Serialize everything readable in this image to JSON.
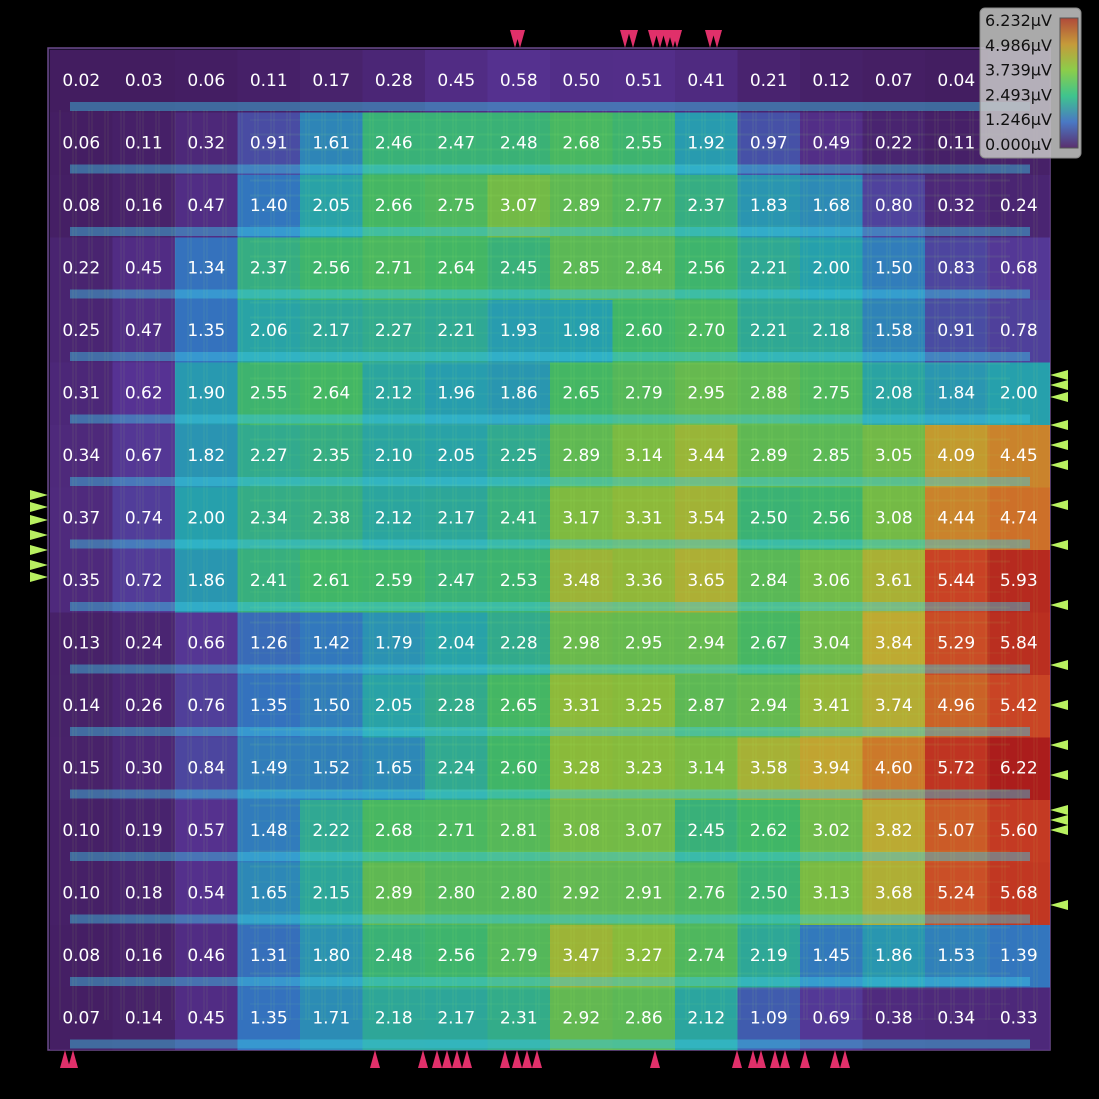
{
  "chart_data": {
    "type": "heatmap",
    "title": "",
    "unit": "μV",
    "rows": 16,
    "cols": 16,
    "vmin": 0.0,
    "vmax": 6.232,
    "colorbar_ticks": [
      "6.232μV",
      "4.986μV",
      "3.739μV",
      "2.493μV",
      "1.246μV",
      "0.000μV"
    ],
    "colorbar_colors": [
      "#b04a3a",
      "#c59a3a",
      "#8ccd4a",
      "#3fc48e",
      "#4a78c4",
      "#5a2f6e"
    ],
    "legend_position": "top-right",
    "values": [
      [
        "0.02",
        "0.03",
        "0.06",
        "0.11",
        "0.17",
        "0.28",
        "0.45",
        "0.58",
        "0.50",
        "0.51",
        "0.41",
        "0.21",
        "0.12",
        "0.07",
        "0.04",
        ""
      ],
      [
        "0.06",
        "0.11",
        "0.32",
        "0.91",
        "1.61",
        "2.46",
        "2.47",
        "2.48",
        "2.68",
        "2.55",
        "1.92",
        "0.97",
        "0.49",
        "0.22",
        "0.11",
        ""
      ],
      [
        "0.08",
        "0.16",
        "0.47",
        "1.40",
        "2.05",
        "2.66",
        "2.75",
        "3.07",
        "2.89",
        "2.77",
        "2.37",
        "1.83",
        "1.68",
        "0.80",
        "0.32",
        "0.24"
      ],
      [
        "0.22",
        "0.45",
        "1.34",
        "2.37",
        "2.56",
        "2.71",
        "2.64",
        "2.45",
        "2.85",
        "2.84",
        "2.56",
        "2.21",
        "2.00",
        "1.50",
        "0.83",
        "0.68"
      ],
      [
        "0.25",
        "0.47",
        "1.35",
        "2.06",
        "2.17",
        "2.27",
        "2.21",
        "1.93",
        "1.98",
        "2.60",
        "2.70",
        "2.21",
        "2.18",
        "1.58",
        "0.91",
        "0.78"
      ],
      [
        "0.31",
        "0.62",
        "1.90",
        "2.55",
        "2.64",
        "2.12",
        "1.96",
        "1.86",
        "2.65",
        "2.79",
        "2.95",
        "2.88",
        "2.75",
        "2.08",
        "1.84",
        "2.00"
      ],
      [
        "0.34",
        "0.67",
        "1.82",
        "2.27",
        "2.35",
        "2.10",
        "2.05",
        "2.25",
        "2.89",
        "3.14",
        "3.44",
        "2.89",
        "2.85",
        "3.05",
        "4.09",
        "4.45"
      ],
      [
        "0.37",
        "0.74",
        "2.00",
        "2.34",
        "2.38",
        "2.12",
        "2.17",
        "2.41",
        "3.17",
        "3.31",
        "3.54",
        "2.50",
        "2.56",
        "3.08",
        "4.44",
        "4.74"
      ],
      [
        "0.35",
        "0.72",
        "1.86",
        "2.41",
        "2.61",
        "2.59",
        "2.47",
        "2.53",
        "3.48",
        "3.36",
        "3.65",
        "2.84",
        "3.06",
        "3.61",
        "5.44",
        "5.93"
      ],
      [
        "0.13",
        "0.24",
        "0.66",
        "1.26",
        "1.42",
        "1.79",
        "2.04",
        "2.28",
        "2.98",
        "2.95",
        "2.94",
        "2.67",
        "3.04",
        "3.84",
        "5.29",
        "5.84"
      ],
      [
        "0.14",
        "0.26",
        "0.76",
        "1.35",
        "1.50",
        "2.05",
        "2.28",
        "2.65",
        "3.31",
        "3.25",
        "2.87",
        "2.94",
        "3.41",
        "3.74",
        "4.96",
        "5.42"
      ],
      [
        "0.15",
        "0.30",
        "0.84",
        "1.49",
        "1.52",
        "1.65",
        "2.24",
        "2.60",
        "3.28",
        "3.23",
        "3.14",
        "3.58",
        "3.94",
        "4.60",
        "5.72",
        "6.22"
      ],
      [
        "0.10",
        "0.19",
        "0.57",
        "1.48",
        "2.22",
        "2.68",
        "2.71",
        "2.81",
        "3.08",
        "3.07",
        "2.45",
        "2.62",
        "3.02",
        "3.82",
        "5.07",
        "5.60"
      ],
      [
        "0.10",
        "0.18",
        "0.54",
        "1.65",
        "2.15",
        "2.89",
        "2.80",
        "2.80",
        "2.92",
        "2.91",
        "2.76",
        "2.50",
        "3.13",
        "3.68",
        "5.24",
        "5.68"
      ],
      [
        "0.08",
        "0.16",
        "0.46",
        "1.31",
        "1.80",
        "2.48",
        "2.56",
        "2.79",
        "3.47",
        "3.27",
        "2.74",
        "2.19",
        "1.45",
        "1.86",
        "1.53",
        "1.39"
      ],
      [
        "0.07",
        "0.14",
        "0.45",
        "1.35",
        "1.71",
        "2.18",
        "2.17",
        "2.31",
        "2.92",
        "2.86",
        "2.12",
        "1.09",
        "0.69",
        "0.38",
        "0.34",
        "0.33"
      ]
    ]
  }
}
